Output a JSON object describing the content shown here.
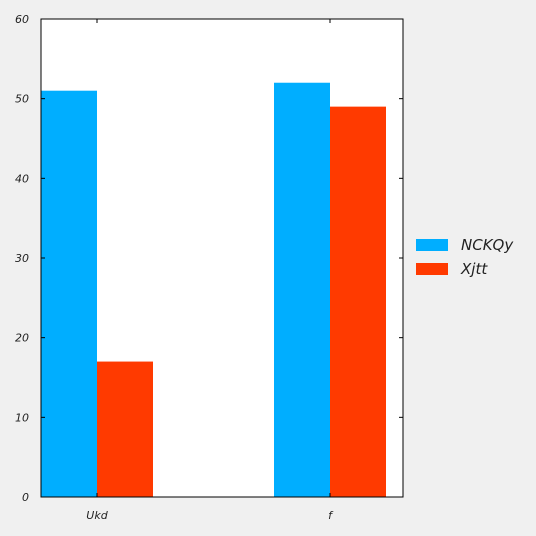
{
  "chart_data": {
    "type": "bar",
    "categories": [
      "Ukd",
      "f"
    ],
    "series": [
      {
        "name": "NCKQy",
        "values": [
          51,
          52
        ],
        "color": "#00aeff"
      },
      {
        "name": "Xjtt",
        "values": [
          17,
          49
        ],
        "color": "#ff3a00"
      }
    ],
    "ylim": [
      0,
      60
    ],
    "yticks": [
      "0",
      "10",
      "20",
      "30",
      "40",
      "50",
      "60"
    ],
    "grid": false,
    "legend_position": "right-outside"
  }
}
